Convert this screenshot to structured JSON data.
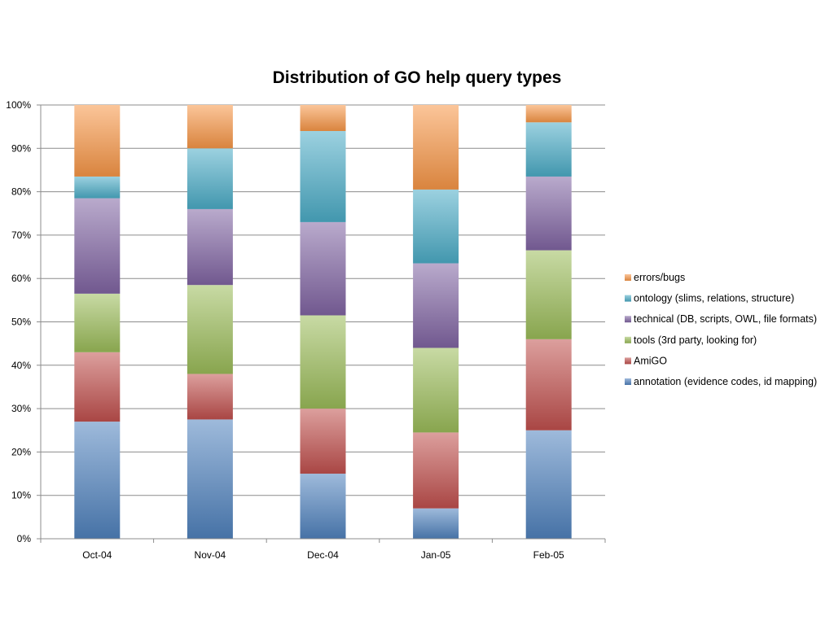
{
  "chart_data": {
    "type": "bar",
    "stacked": true,
    "normalized": true,
    "title": "Distribution of GO help query types",
    "categories": [
      "Oct-04",
      "Nov-04",
      "Dec-04",
      "Jan-05",
      "Feb-05"
    ],
    "y_ticks": [
      "0%",
      "10%",
      "20%",
      "30%",
      "40%",
      "50%",
      "60%",
      "70%",
      "80%",
      "90%",
      "100%"
    ],
    "ylim": [
      0,
      100
    ],
    "grid": true,
    "legend_position": "right",
    "series": [
      {
        "name": "annotation (evidence codes, id mapping)",
        "color": "#4f81bd",
        "values": [
          27,
          27.5,
          15,
          7,
          25
        ]
      },
      {
        "name": "AmiGO",
        "color": "#c0504d",
        "values": [
          16,
          10.5,
          15,
          17.5,
          21
        ]
      },
      {
        "name": "tools (3rd party, looking for)",
        "color": "#9bbb59",
        "values": [
          13.5,
          20.5,
          21.5,
          19.5,
          20.5
        ]
      },
      {
        "name": "technical (DB, scripts, OWL, file formats)",
        "color": "#8064a2",
        "values": [
          22,
          17.5,
          21.5,
          19.5,
          17
        ]
      },
      {
        "name": "ontology (slims, relations, structure)",
        "color": "#4bacc6",
        "values": [
          5,
          14,
          21,
          17,
          12.5
        ]
      },
      {
        "name": "errors/bugs",
        "color": "#f79646",
        "values": [
          16.5,
          10,
          6,
          19.5,
          4
        ]
      }
    ]
  }
}
